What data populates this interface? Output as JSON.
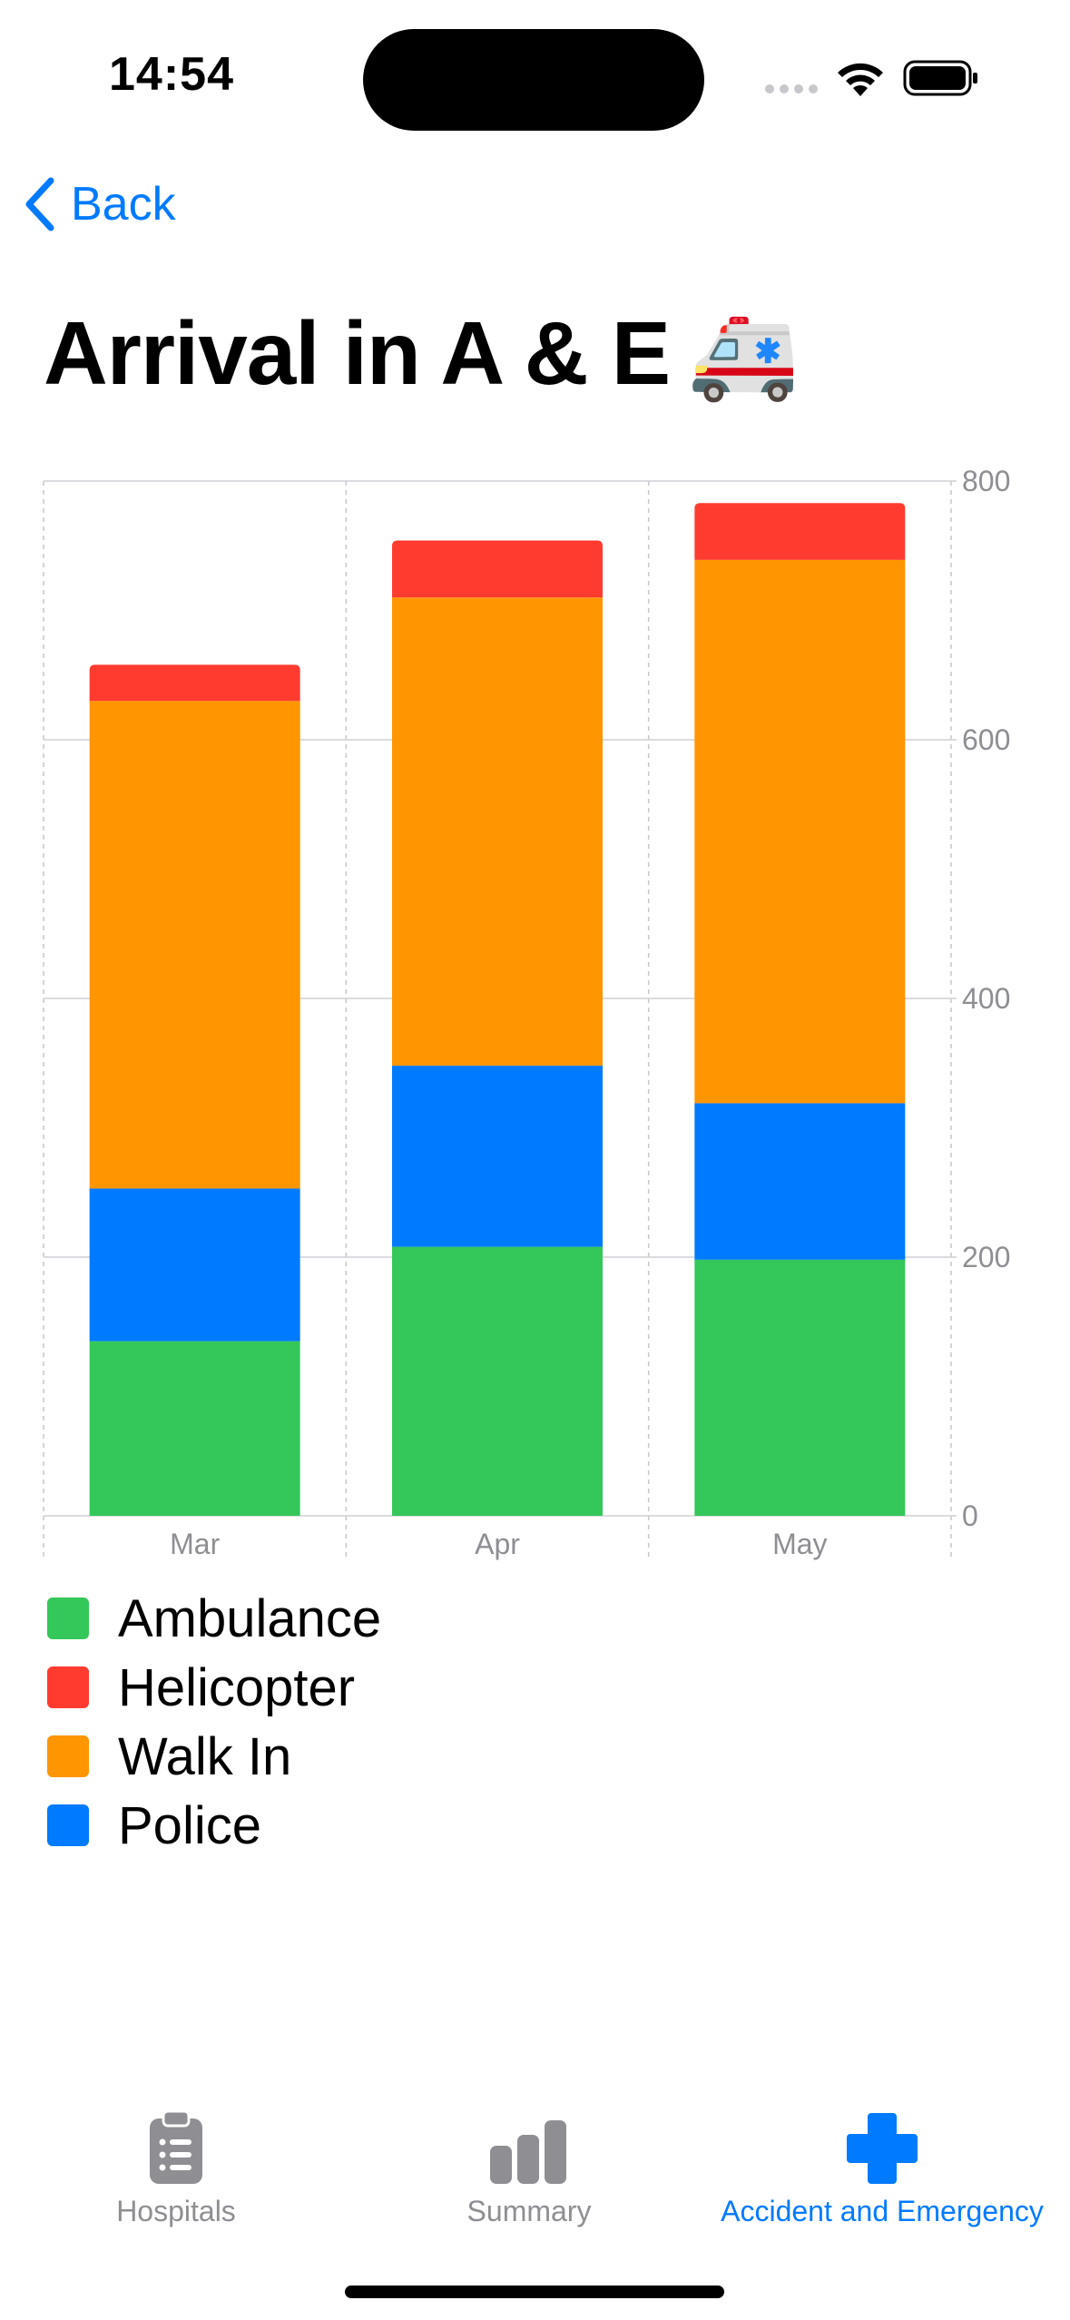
{
  "status_bar": {
    "time": "14:54"
  },
  "nav": {
    "back_label": "Back"
  },
  "page": {
    "title": "Arrival in A & E",
    "title_emoji": "🚑"
  },
  "colors": {
    "accent": "#007aff",
    "ambulance": "#34c759",
    "helicopter": "#ff3b30",
    "walk_in": "#ff9500",
    "police": "#007aff",
    "tab_inactive": "#8e8e93"
  },
  "chart_data": {
    "type": "bar",
    "stacked": true,
    "categories": [
      "Mar",
      "Apr",
      "May"
    ],
    "series": [
      {
        "name": "Ambulance",
        "color": "#34c759",
        "values": [
          135,
          208,
          198
        ]
      },
      {
        "name": "Police",
        "color": "#007aff",
        "values": [
          118,
          140,
          121
        ]
      },
      {
        "name": "Walk In",
        "color": "#ff9500",
        "values": [
          377,
          362,
          420
        ]
      },
      {
        "name": "Helicopter",
        "color": "#ff3b30",
        "values": [
          28,
          44,
          44
        ]
      }
    ],
    "y_ticks": [
      "0",
      "200",
      "400",
      "600",
      "800"
    ],
    "ylim": [
      0,
      800
    ],
    "y_axis_side": "right",
    "grid": true,
    "legend_position": "bottom-left"
  },
  "legend": [
    {
      "label": "Ambulance",
      "color": "#34c759"
    },
    {
      "label": "Helicopter",
      "color": "#ff3b30"
    },
    {
      "label": "Walk In",
      "color": "#ff9500"
    },
    {
      "label": "Police",
      "color": "#007aff"
    }
  ],
  "tabs": [
    {
      "label": "Hospitals",
      "icon": "clipboard-icon",
      "selected": false
    },
    {
      "label": "Summary",
      "icon": "bar-chart-icon",
      "selected": false
    },
    {
      "label": "Accident and Emergency",
      "icon": "cross-icon",
      "selected": true
    }
  ]
}
